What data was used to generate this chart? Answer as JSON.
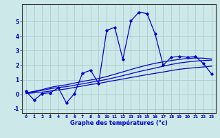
{
  "xlabel": "Graphe des températures (°c)",
  "bg_color": "#cce8e8",
  "grid_color": "#aacccc",
  "line_color": "#0000cc",
  "x_hours": [
    0,
    1,
    2,
    3,
    4,
    5,
    6,
    7,
    8,
    9,
    10,
    11,
    12,
    13,
    14,
    15,
    16,
    17,
    18,
    19,
    20,
    21,
    22,
    23
  ],
  "main_line": [
    0.2,
    -0.4,
    0.05,
    0.1,
    0.45,
    -0.6,
    0.05,
    1.45,
    1.65,
    0.75,
    4.4,
    4.6,
    2.4,
    5.05,
    5.65,
    5.55,
    4.15,
    2.0,
    2.55,
    2.6,
    2.55,
    2.6,
    2.1,
    1.4
  ],
  "smooth_line1": [
    0.1,
    0.18,
    0.27,
    0.38,
    0.47,
    0.52,
    0.62,
    0.72,
    0.82,
    0.92,
    1.02,
    1.15,
    1.28,
    1.42,
    1.56,
    1.68,
    1.8,
    1.93,
    2.05,
    2.15,
    2.22,
    2.28,
    2.32,
    2.35
  ],
  "smooth_line2": [
    0.1,
    0.2,
    0.32,
    0.47,
    0.58,
    0.65,
    0.77,
    0.88,
    0.98,
    1.08,
    1.22,
    1.38,
    1.54,
    1.7,
    1.86,
    2.0,
    2.13,
    2.23,
    2.32,
    2.4,
    2.46,
    2.5,
    2.48,
    2.43
  ],
  "smooth_line3": [
    0.05,
    0.1,
    0.15,
    0.22,
    0.3,
    0.37,
    0.47,
    0.57,
    0.67,
    0.75,
    0.85,
    0.95,
    1.05,
    1.15,
    1.25,
    1.35,
    1.44,
    1.53,
    1.63,
    1.72,
    1.78,
    1.83,
    1.88,
    1.93
  ],
  "ylim": [
    -1.3,
    6.2
  ],
  "yticks": [
    -1,
    0,
    1,
    2,
    3,
    4,
    5
  ],
  "xlim": [
    -0.5,
    23.5
  ]
}
